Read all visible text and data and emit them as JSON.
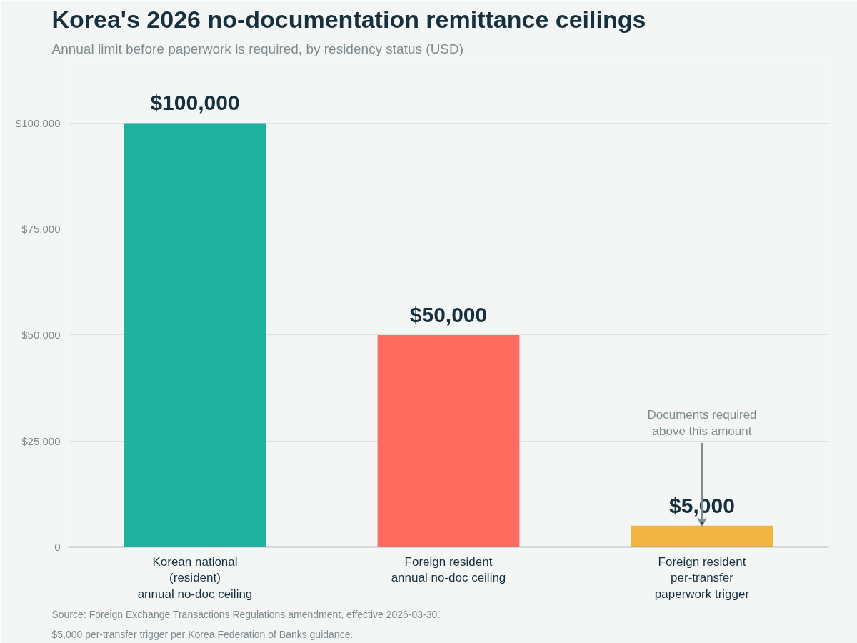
{
  "chart_data": {
    "type": "bar",
    "title": "Korea's 2026 no-documentation remittance ceilings",
    "subtitle": "Annual limit before paperwork is required, by residency status (USD)",
    "categories": [
      "Korean national\n(resident)\nannual no-doc ceiling",
      "Foreign resident\nannual no-doc ceiling",
      "Foreign resident\nper-transfer\npaperwork trigger"
    ],
    "values": [
      100000,
      50000,
      5000
    ],
    "colors": [
      "#20b2a0",
      "#ff6b5e",
      "#f2b443"
    ],
    "value_labels": [
      "$100,000",
      "$50,000",
      "$5,000"
    ],
    "ylim": [
      0,
      115000
    ],
    "yticks": [
      {
        "value": 0,
        "label": "0"
      },
      {
        "value": 25000,
        "label": "$25,000"
      },
      {
        "value": 50000,
        "label": "$50,000"
      },
      {
        "value": 75000,
        "label": "$75,000"
      },
      {
        "value": 100000,
        "label": "$100,000"
      }
    ],
    "grid": "y",
    "annotations": [
      {
        "text": "Documents required\nabove this amount",
        "x": "Foreign resident\nper-transfer\npaperwork trigger",
        "y": 5000
      },
      "Source: Foreign Exchange Transactions Regulations amendment, effective 2026-03-30.",
      "$5,000 per-transfer trigger per Korea Federation of Banks guidance."
    ]
  }
}
